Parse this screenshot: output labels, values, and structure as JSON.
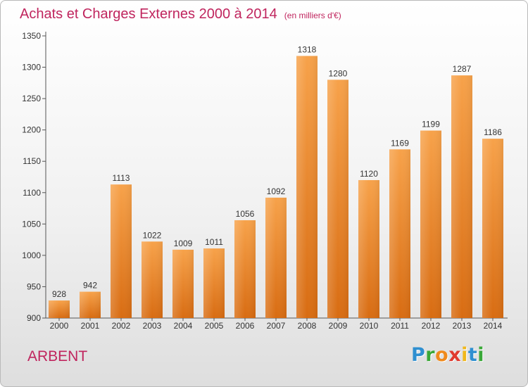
{
  "chart_data": {
    "type": "bar",
    "title": "Achats et Charges Externes 2000 à 2014",
    "subtitle": "(en milliers d'€)",
    "categories": [
      "2000",
      "2001",
      "2002",
      "2003",
      "2004",
      "2005",
      "2006",
      "2007",
      "2008",
      "2009",
      "2010",
      "2011",
      "2012",
      "2013",
      "2014"
    ],
    "values": [
      928,
      942,
      1113,
      1022,
      1009,
      1011,
      1056,
      1092,
      1318,
      1280,
      1120,
      1169,
      1199,
      1287,
      1186
    ],
    "ylim": [
      900,
      1350
    ],
    "yticks": [
      900,
      950,
      1000,
      1050,
      1100,
      1150,
      1200,
      1250,
      1300,
      1350
    ],
    "grid": false,
    "bar_color": "#f0922e",
    "xlabel": "",
    "ylabel": ""
  },
  "place_name": "ARBENT",
  "logo": {
    "letters": [
      "P",
      "r",
      "o",
      "x",
      "i",
      "t",
      "i"
    ],
    "colors": [
      "#2f8fd0",
      "#3aa838",
      "#f08a1c",
      "#e03a2f",
      "#f0b81c",
      "#2f8fd0",
      "#3aa838"
    ]
  }
}
